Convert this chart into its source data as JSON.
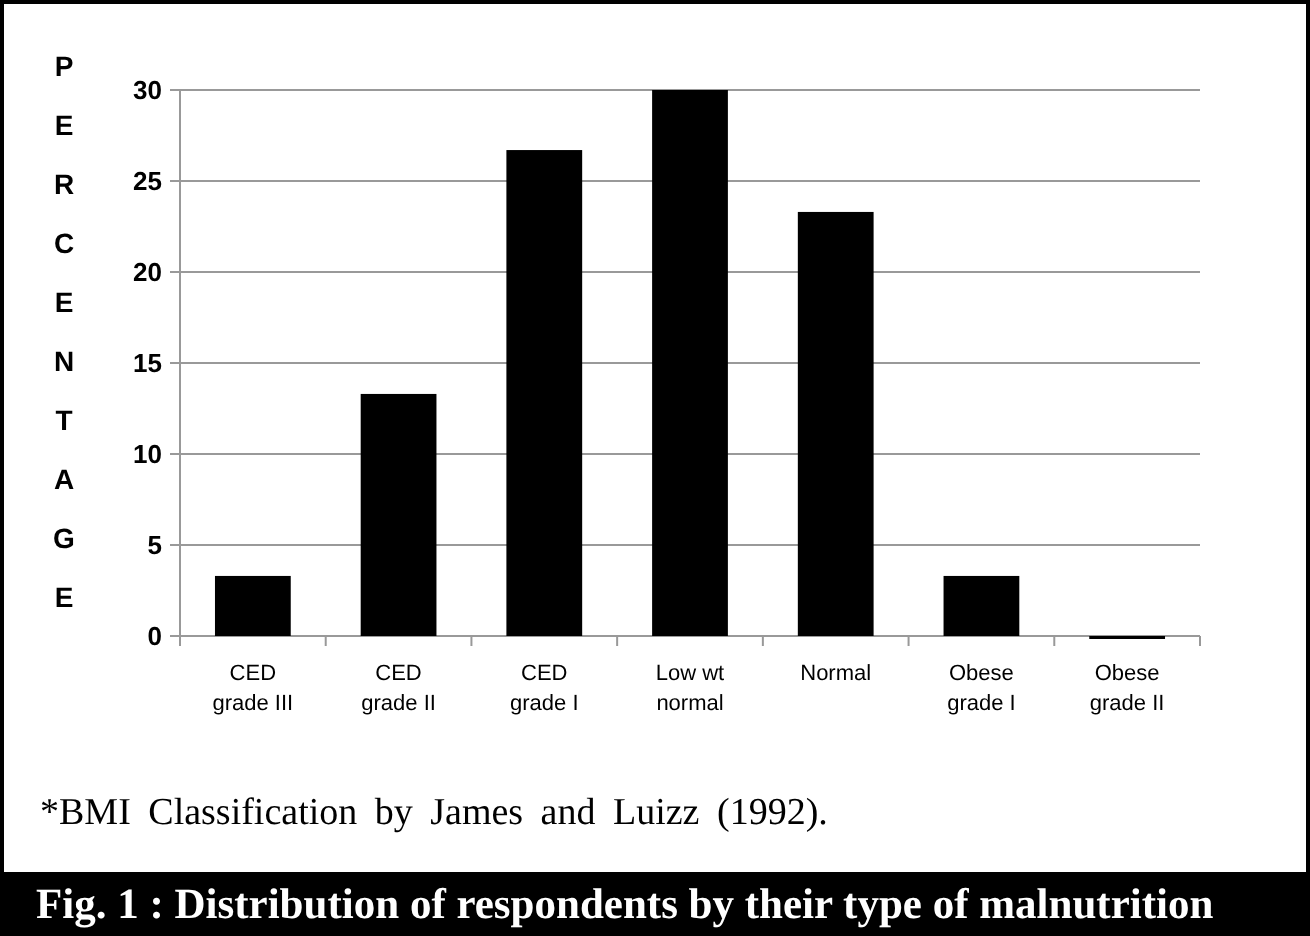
{
  "chart_data": {
    "type": "bar",
    "title": "Fig. 1 : Distribution of respondents by their type of malnutrition",
    "ylabel": "PERCENTAGE",
    "categories": [
      "CED grade III",
      "CED grade II",
      "CED grade I",
      "Low wt normal",
      "Normal",
      "Obese grade I",
      "Obese grade II"
    ],
    "values": [
      3.3,
      13.3,
      26.7,
      30,
      23.3,
      3.3,
      0
    ],
    "color": "#000000",
    "ylim": [
      0,
      30
    ],
    "yticks": [
      0,
      5,
      10,
      15,
      20,
      25,
      30
    ],
    "grid": "y",
    "annotations": [
      "*BMI Classification by James and Luizz (1992)."
    ]
  }
}
